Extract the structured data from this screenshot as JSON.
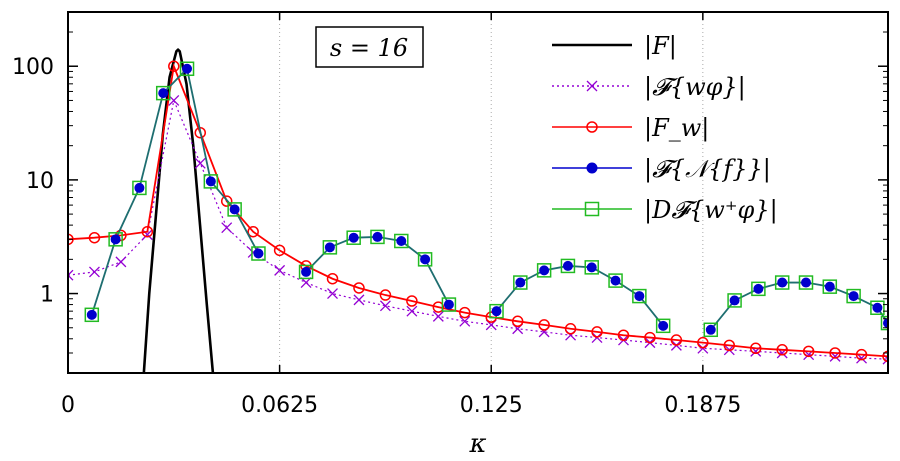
{
  "chart_data": {
    "type": "line",
    "xlabel": "κ",
    "ylabel": "",
    "x_scale": "linear",
    "y_scale": "log",
    "xlim": [
      0,
      0.2421875
    ],
    "ylim": [
      0.2,
      300
    ],
    "xticks": [
      {
        "value": 0,
        "label": "0"
      },
      {
        "value": 0.0625,
        "label": "0.0625"
      },
      {
        "value": 0.125,
        "label": "0.125"
      },
      {
        "value": 0.1875,
        "label": "0.1875"
      }
    ],
    "yticks": [
      {
        "value": 1,
        "label": "1"
      },
      {
        "value": 10,
        "label": "10"
      },
      {
        "value": 100,
        "label": "100"
      }
    ],
    "vertical_gridlines_at": [
      0.0625,
      0.125,
      0.1875
    ],
    "annotation": "s = 16",
    "legend_position": "top-right",
    "series": [
      {
        "name": "|F|",
        "style": "line",
        "color": "#000000",
        "x": [
          0.0224,
          0.024,
          0.026,
          0.028,
          0.03,
          0.032,
          0.0325,
          0.033,
          0.035,
          0.037,
          0.039,
          0.041,
          0.0428
        ],
        "y": [
          0.2,
          1.0,
          5.0,
          25.0,
          80.0,
          135.0,
          140.0,
          135.0,
          70.0,
          20.0,
          4.0,
          0.8,
          0.2
        ]
      },
      {
        "name": "|𝓕{wφ}|",
        "style": "dotted-cross",
        "color": "#9400D3",
        "x": [
          0,
          0.0078125,
          0.015625,
          0.0234375,
          0.03125,
          0.0390625,
          0.046875,
          0.0546875,
          0.0625,
          0.0703125,
          0.078125,
          0.0859375,
          0.09375,
          0.1015625,
          0.109375,
          0.1171875,
          0.125,
          0.1328125,
          0.140625,
          0.1484375,
          0.15625,
          0.1640625,
          0.171875,
          0.1796875,
          0.1875,
          0.1953125,
          0.203125,
          0.2109375,
          0.21875,
          0.2265625,
          0.234375,
          0.2421875
        ],
        "y": [
          1.45,
          1.55,
          1.9,
          3.3,
          50,
          14,
          3.8,
          2.3,
          1.6,
          1.25,
          1.0,
          0.88,
          0.78,
          0.7,
          0.63,
          0.57,
          0.53,
          0.49,
          0.46,
          0.43,
          0.41,
          0.39,
          0.37,
          0.35,
          0.33,
          0.32,
          0.31,
          0.3,
          0.29,
          0.28,
          0.27,
          0.265
        ]
      },
      {
        "name": "|F_w|",
        "style": "line-open-circle",
        "color": "#FF0000",
        "x": [
          0,
          0.0078125,
          0.015625,
          0.0234375,
          0.03125,
          0.0390625,
          0.046875,
          0.0546875,
          0.0625,
          0.0703125,
          0.078125,
          0.0859375,
          0.09375,
          0.1015625,
          0.109375,
          0.1171875,
          0.125,
          0.1328125,
          0.140625,
          0.1484375,
          0.15625,
          0.1640625,
          0.171875,
          0.1796875,
          0.1875,
          0.1953125,
          0.203125,
          0.2109375,
          0.21875,
          0.2265625,
          0.234375,
          0.2421875
        ],
        "y": [
          3.0,
          3.1,
          3.25,
          3.5,
          100,
          26,
          6.5,
          3.5,
          2.4,
          1.75,
          1.35,
          1.12,
          0.97,
          0.86,
          0.76,
          0.68,
          0.62,
          0.57,
          0.53,
          0.49,
          0.46,
          0.43,
          0.41,
          0.39,
          0.37,
          0.35,
          0.33,
          0.32,
          0.31,
          0.3,
          0.29,
          0.28
        ]
      },
      {
        "name": "|𝓕{𝒩{f}}|",
        "style": "line-filled-circle",
        "color": "#0000CD",
        "line_color": "#1E6E70",
        "segments": [
          {
            "x": [
              0.00703125,
              0.0140625,
              0.02109375,
              0.028125,
              0.03515625,
              0.0421875,
              0.04921875,
              0.05625
            ],
            "y": [
              0.65,
              3.0,
              8.5,
              58,
              95,
              9.7,
              5.5,
              2.25
            ]
          },
          {
            "x": [
              0.0703125,
              0.07734375,
              0.084375,
              0.09140625,
              0.0984375,
              0.10546875,
              0.1125
            ],
            "y": [
              1.55,
              2.55,
              3.1,
              3.15,
              2.9,
              2.0,
              0.8
            ]
          },
          {
            "x": [
              0.1265625,
              0.13359375,
              0.140625,
              0.14765625,
              0.1546875,
              0.16171875,
              0.16875,
              0.17578125
            ],
            "y": [
              0.7,
              1.25,
              1.6,
              1.75,
              1.7,
              1.3,
              0.95,
              0.52
            ]
          },
          {
            "x": [
              0.1898438,
              0.196875,
              0.20390625,
              0.2109375,
              0.21796875,
              0.225,
              0.23203125,
              0.2390625,
              0.2421875
            ],
            "y": [
              0.48,
              0.87,
              1.1,
              1.25,
              1.25,
              1.15,
              0.95,
              0.75,
              0.55
            ]
          }
        ]
      },
      {
        "name": "|D𝓕{w⁺φ}|",
        "style": "line-open-square",
        "color": "#22BB22",
        "line_color": "#1E6E70"
      }
    ]
  },
  "legend": {
    "entries": [
      {
        "label": "|F|",
        "color": "#000000",
        "marker": "none",
        "dash": "solid"
      },
      {
        "label": "|𝓕{wφ}|",
        "color": "#9400D3",
        "marker": "cross",
        "dash": "dotted"
      },
      {
        "label": "|F_w|",
        "color": "#FF0000",
        "marker": "open-circle",
        "dash": "solid"
      },
      {
        "label": "|𝓕{𝒩{f}}|",
        "color": "#0000CD",
        "marker": "filled-circle",
        "dash": "solid"
      },
      {
        "label": "|D𝓕{w⁺φ}|",
        "color": "#22BB22",
        "marker": "open-square",
        "dash": "solid"
      }
    ]
  }
}
